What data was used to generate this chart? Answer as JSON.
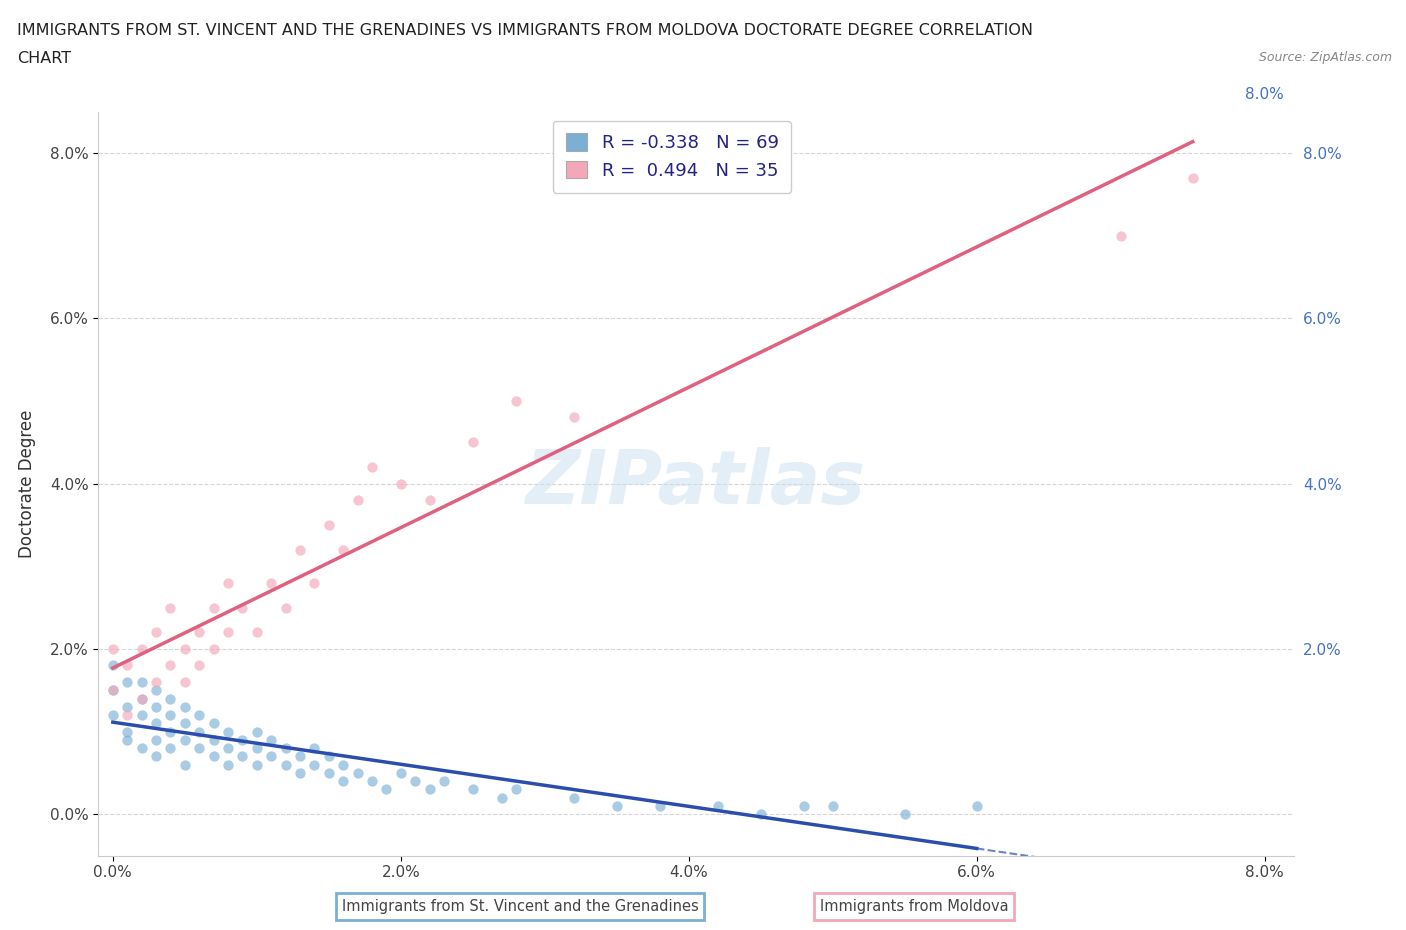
{
  "title_line1": "IMMIGRANTS FROM ST. VINCENT AND THE GRENADINES VS IMMIGRANTS FROM MOLDOVA DOCTORATE DEGREE CORRELATION",
  "title_line2": "CHART",
  "source_text": "Source: ZipAtlas.com",
  "ylabel": "Doctorate Degree",
  "xlim": [
    -0.001,
    0.082
  ],
  "ylim": [
    -0.005,
    0.085
  ],
  "xticks": [
    0.0,
    0.02,
    0.04,
    0.06,
    0.08
  ],
  "yticks": [
    0.0,
    0.02,
    0.04,
    0.06,
    0.08
  ],
  "xtick_labels": [
    "0.0%",
    "2.0%",
    "4.0%",
    "6.0%",
    "8.0%"
  ],
  "ytick_labels": [
    "0.0%",
    "2.0%",
    "4.0%",
    "6.0%",
    "8.0%"
  ],
  "right_ytick_labels": [
    "8.0%",
    "6.0%",
    "4.0%",
    "2.0%"
  ],
  "color_vincent": "#7BAFD4",
  "color_moldova": "#F4A7B9",
  "line_color_vincent": "#2B4EAD",
  "line_color_moldova": "#E06080",
  "scatter_alpha": 0.65,
  "scatter_size": 55,
  "R_vincent": -0.338,
  "N_vincent": 69,
  "R_moldova": 0.494,
  "N_moldova": 35,
  "legend_label_vincent": "Immigrants from St. Vincent and the Grenadines",
  "legend_label_moldova": "Immigrants from Moldova",
  "watermark": "ZIPatlas",
  "background_color": "#ffffff",
  "grid_color": "#cccccc",
  "vincent_x": [
    0.0,
    0.0,
    0.0,
    0.001,
    0.001,
    0.001,
    0.001,
    0.002,
    0.002,
    0.002,
    0.002,
    0.003,
    0.003,
    0.003,
    0.003,
    0.003,
    0.004,
    0.004,
    0.004,
    0.004,
    0.005,
    0.005,
    0.005,
    0.005,
    0.006,
    0.006,
    0.006,
    0.007,
    0.007,
    0.007,
    0.008,
    0.008,
    0.008,
    0.009,
    0.009,
    0.01,
    0.01,
    0.01,
    0.011,
    0.011,
    0.012,
    0.012,
    0.013,
    0.013,
    0.014,
    0.014,
    0.015,
    0.015,
    0.016,
    0.016,
    0.017,
    0.018,
    0.019,
    0.02,
    0.021,
    0.022,
    0.023,
    0.025,
    0.027,
    0.028,
    0.032,
    0.035,
    0.038,
    0.042,
    0.045,
    0.048,
    0.05,
    0.055,
    0.06
  ],
  "vincent_y": [
    0.012,
    0.015,
    0.018,
    0.01,
    0.013,
    0.016,
    0.009,
    0.012,
    0.014,
    0.008,
    0.016,
    0.011,
    0.013,
    0.007,
    0.015,
    0.009,
    0.01,
    0.012,
    0.008,
    0.014,
    0.009,
    0.011,
    0.006,
    0.013,
    0.008,
    0.01,
    0.012,
    0.007,
    0.009,
    0.011,
    0.008,
    0.01,
    0.006,
    0.007,
    0.009,
    0.008,
    0.006,
    0.01,
    0.007,
    0.009,
    0.006,
    0.008,
    0.007,
    0.005,
    0.006,
    0.008,
    0.005,
    0.007,
    0.004,
    0.006,
    0.005,
    0.004,
    0.003,
    0.005,
    0.004,
    0.003,
    0.004,
    0.003,
    0.002,
    0.003,
    0.002,
    0.001,
    0.001,
    0.001,
    0.0,
    0.001,
    0.001,
    0.0,
    0.001
  ],
  "moldova_x": [
    0.0,
    0.0,
    0.001,
    0.001,
    0.002,
    0.002,
    0.003,
    0.003,
    0.004,
    0.004,
    0.005,
    0.005,
    0.006,
    0.006,
    0.007,
    0.007,
    0.008,
    0.008,
    0.009,
    0.01,
    0.011,
    0.012,
    0.013,
    0.014,
    0.015,
    0.016,
    0.017,
    0.018,
    0.02,
    0.022,
    0.025,
    0.028,
    0.032,
    0.07,
    0.075
  ],
  "moldova_y": [
    0.015,
    0.02,
    0.012,
    0.018,
    0.014,
    0.02,
    0.016,
    0.022,
    0.018,
    0.025,
    0.02,
    0.016,
    0.022,
    0.018,
    0.025,
    0.02,
    0.022,
    0.028,
    0.025,
    0.022,
    0.028,
    0.025,
    0.032,
    0.028,
    0.035,
    0.032,
    0.038,
    0.042,
    0.04,
    0.038,
    0.045,
    0.05,
    0.048,
    0.07,
    0.077
  ]
}
